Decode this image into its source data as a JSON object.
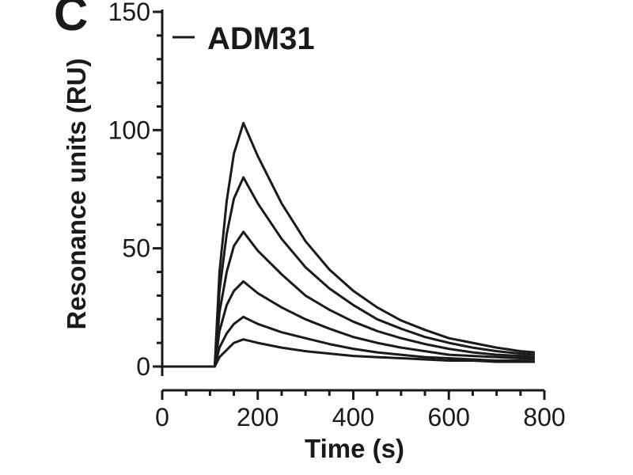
{
  "panel_letter": "C",
  "chart_data": {
    "type": "line",
    "title": "",
    "xlabel": "Time (s)",
    "ylabel": "Resonance units (RU)",
    "xlim": [
      0,
      800
    ],
    "ylim": [
      0,
      150
    ],
    "x_ticks": [
      0,
      200,
      400,
      600,
      800
    ],
    "y_ticks": [
      0,
      50,
      100,
      150
    ],
    "grid": false,
    "legend": {
      "position": "top-left",
      "entries": [
        "ADM31"
      ]
    },
    "x": [
      0,
      100,
      110,
      120,
      135,
      150,
      170,
      200,
      250,
      300,
      350,
      400,
      450,
      500,
      550,
      600,
      650,
      700,
      750,
      780
    ],
    "series": [
      {
        "values": [
          0,
          0,
          0,
          40,
          70,
          90,
          103,
          89,
          69,
          53,
          41,
          32,
          25,
          19.5,
          15.5,
          12,
          10,
          8,
          6.5,
          6
        ]
      },
      {
        "values": [
          0,
          0,
          0,
          32,
          56,
          71,
          80,
          69,
          54,
          42,
          33,
          26,
          20,
          16,
          12.5,
          10,
          8,
          6.5,
          5.5,
          5
        ]
      },
      {
        "values": [
          0,
          0,
          0,
          23,
          40,
          51,
          57,
          49,
          39,
          30,
          24,
          19,
          15,
          12,
          9.5,
          7.5,
          6,
          5,
          4.5,
          4
        ]
      },
      {
        "values": [
          0,
          0,
          0,
          15,
          26,
          32,
          36,
          31,
          25,
          20,
          16,
          12.5,
          10,
          8,
          6.5,
          5,
          4.5,
          4,
          3.5,
          3
        ]
      },
      {
        "values": [
          0,
          0,
          0,
          8,
          14,
          18,
          21,
          18,
          14.5,
          12,
          9.5,
          7.5,
          6,
          5,
          4,
          3.5,
          3,
          2.5,
          2.5,
          2
        ]
      },
      {
        "values": [
          0,
          0,
          0,
          4,
          7,
          10,
          11.5,
          10,
          8,
          6.5,
          5.5,
          4.5,
          4,
          3.5,
          3,
          2.5,
          2.5,
          2,
          2,
          2
        ]
      }
    ]
  }
}
